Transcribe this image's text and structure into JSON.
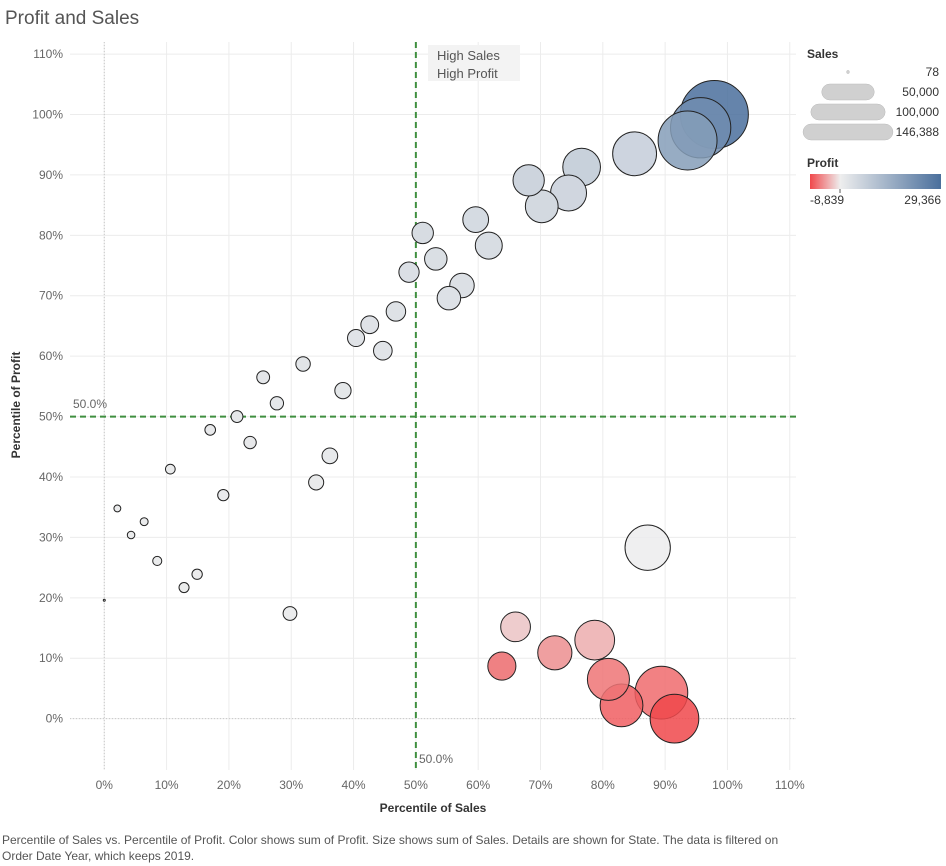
{
  "title": "Profit and Sales",
  "caption": "Percentile of Sales vs. Percentile of Profit.  Color shows sum of Profit.  Size shows sum of Sales.  Details are shown for State. The data is filtered on Order Date Year, which keeps 2019.",
  "chart_data": {
    "type": "scatter",
    "xlabel": "Percentile of Sales",
    "ylabel": "Percentile of Profit",
    "xlim": [
      -0.055,
      1.11
    ],
    "ylim": [
      -0.085,
      1.12
    ],
    "x_ticks": [
      0,
      0.1,
      0.2,
      0.3,
      0.4,
      0.5,
      0.6,
      0.7,
      0.8,
      0.9,
      1.0,
      1.1
    ],
    "x_tick_labels": [
      "0%",
      "10%",
      "20%",
      "30%",
      "40%",
      "50%",
      "60%",
      "70%",
      "80%",
      "90%",
      "100%",
      "110%"
    ],
    "y_ticks": [
      0,
      0.1,
      0.2,
      0.3,
      0.4,
      0.5,
      0.6,
      0.7,
      0.8,
      0.9,
      1.0,
      1.1
    ],
    "y_tick_labels": [
      "0%",
      "10%",
      "20%",
      "30%",
      "40%",
      "50%",
      "60%",
      "70%",
      "80%",
      "90%",
      "100%",
      "110%"
    ],
    "grid": true,
    "reference_lines": {
      "x": {
        "value": 0.5,
        "label": "50.0%",
        "color": "#3f8f3f"
      },
      "y": {
        "value": 0.5,
        "label": "50.0%",
        "color": "#3f8f3f"
      }
    },
    "annotation": {
      "lines": [
        "High Sales",
        "High Profit"
      ]
    },
    "points": [
      {
        "x": 0.0,
        "y": 0.196,
        "sales": 78,
        "profit": 200
      },
      {
        "x": 0.021,
        "y": 0.348,
        "sales": 1500,
        "profit": 450
      },
      {
        "x": 0.043,
        "y": 0.304,
        "sales": 1800,
        "profit": 420
      },
      {
        "x": 0.064,
        "y": 0.326,
        "sales": 2000,
        "profit": 430
      },
      {
        "x": 0.085,
        "y": 0.261,
        "sales": 2600,
        "profit": 380
      },
      {
        "x": 0.106,
        "y": 0.413,
        "sales": 3000,
        "profit": 600
      },
      {
        "x": 0.128,
        "y": 0.217,
        "sales": 3200,
        "profit": 320
      },
      {
        "x": 0.149,
        "y": 0.239,
        "sales": 3400,
        "profit": 350
      },
      {
        "x": 0.17,
        "y": 0.478,
        "sales": 3600,
        "profit": 900
      },
      {
        "x": 0.191,
        "y": 0.37,
        "sales": 4000,
        "profit": 560
      },
      {
        "x": 0.213,
        "y": 0.5,
        "sales": 4400,
        "profit": 1000
      },
      {
        "x": 0.234,
        "y": 0.457,
        "sales": 4800,
        "profit": 880
      },
      {
        "x": 0.255,
        "y": 0.565,
        "sales": 5200,
        "profit": 1300
      },
      {
        "x": 0.277,
        "y": 0.522,
        "sales": 5600,
        "profit": 1100
      },
      {
        "x": 0.298,
        "y": 0.174,
        "sales": 6000,
        "profit": 300
      },
      {
        "x": 0.319,
        "y": 0.587,
        "sales": 6600,
        "profit": 1500
      },
      {
        "x": 0.34,
        "y": 0.391,
        "sales": 7200,
        "profit": 600
      },
      {
        "x": 0.362,
        "y": 0.435,
        "sales": 7800,
        "profit": 800
      },
      {
        "x": 0.383,
        "y": 0.543,
        "sales": 8400,
        "profit": 1200
      },
      {
        "x": 0.404,
        "y": 0.63,
        "sales": 9200,
        "profit": 1800
      },
      {
        "x": 0.426,
        "y": 0.652,
        "sales": 10000,
        "profit": 2000
      },
      {
        "x": 0.447,
        "y": 0.609,
        "sales": 11000,
        "profit": 1700
      },
      {
        "x": 0.468,
        "y": 0.674,
        "sales": 12000,
        "profit": 2100
      },
      {
        "x": 0.489,
        "y": 0.739,
        "sales": 13000,
        "profit": 2600
      },
      {
        "x": 0.511,
        "y": 0.804,
        "sales": 14500,
        "profit": 3300
      },
      {
        "x": 0.532,
        "y": 0.761,
        "sales": 16000,
        "profit": 2800
      },
      {
        "x": 0.553,
        "y": 0.696,
        "sales": 17500,
        "profit": 2300
      },
      {
        "x": 0.574,
        "y": 0.717,
        "sales": 19000,
        "profit": 2500
      },
      {
        "x": 0.596,
        "y": 0.826,
        "sales": 21000,
        "profit": 3600
      },
      {
        "x": 0.617,
        "y": 0.783,
        "sales": 23000,
        "profit": 3100
      },
      {
        "x": 0.638,
        "y": 0.087,
        "sales": 25000,
        "profit": -5200
      },
      {
        "x": 0.66,
        "y": 0.152,
        "sales": 28000,
        "profit": -1200
      },
      {
        "x": 0.681,
        "y": 0.891,
        "sales": 31000,
        "profit": 5000
      },
      {
        "x": 0.702,
        "y": 0.848,
        "sales": 34000,
        "profit": 4000
      },
      {
        "x": 0.723,
        "y": 0.109,
        "sales": 37000,
        "profit": -3500
      },
      {
        "x": 0.745,
        "y": 0.87,
        "sales": 41000,
        "profit": 4500
      },
      {
        "x": 0.766,
        "y": 0.913,
        "sales": 45000,
        "profit": 5800
      },
      {
        "x": 0.787,
        "y": 0.13,
        "sales": 50000,
        "profit": -2100
      },
      {
        "x": 0.809,
        "y": 0.065,
        "sales": 56000,
        "profit": -6000
      },
      {
        "x": 0.83,
        "y": 0.022,
        "sales": 58000,
        "profit": -7400
      },
      {
        "x": 0.851,
        "y": 0.935,
        "sales": 61000,
        "profit": 6500
      },
      {
        "x": 0.872,
        "y": 0.283,
        "sales": 65000,
        "profit": 200
      },
      {
        "x": 0.894,
        "y": 0.043,
        "sales": 88000,
        "profit": -6600
      },
      {
        "x": 0.915,
        "y": 0.0,
        "sales": 75000,
        "profit": -8839
      },
      {
        "x": 0.936,
        "y": 0.957,
        "sales": 110000,
        "profit": 18000
      },
      {
        "x": 0.957,
        "y": 0.978,
        "sales": 115000,
        "profit": 22000
      },
      {
        "x": 0.979,
        "y": 1.0,
        "sales": 146388,
        "profit": 29366
      }
    ]
  },
  "legend": {
    "size": {
      "title": "Sales",
      "items": [
        {
          "label": "78",
          "value": 78
        },
        {
          "label": "50,000",
          "value": 50000
        },
        {
          "label": "100,000",
          "value": 100000
        },
        {
          "label": "146,388",
          "value": 146388
        }
      ]
    },
    "color": {
      "title": "Profit",
      "min_label": "-8,839",
      "max_label": "29,366",
      "min_value": -8839,
      "max_value": 29366,
      "low_color": "#f0484b",
      "mid_color": "#eeeeee",
      "high_color": "#4a6f9c"
    }
  }
}
